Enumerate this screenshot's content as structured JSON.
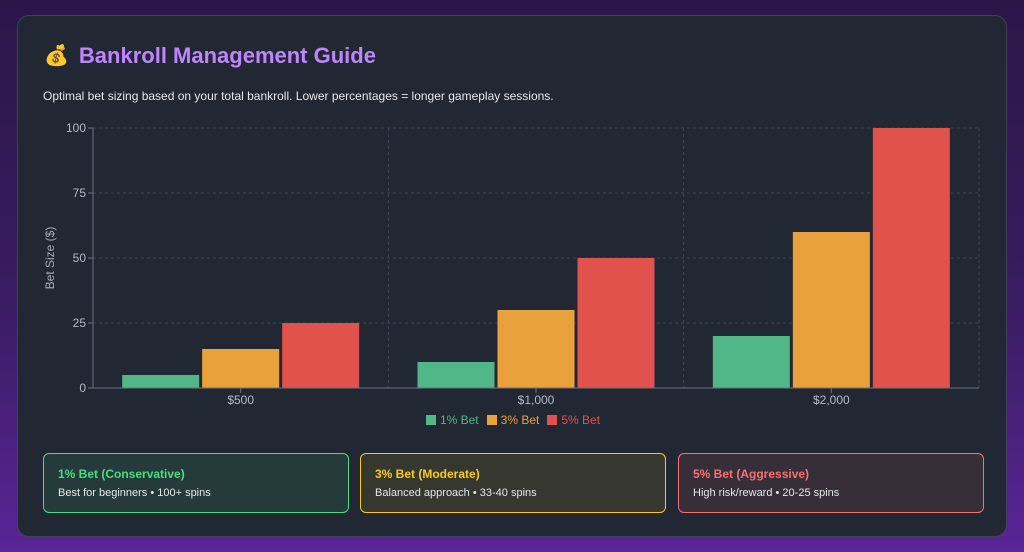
{
  "header": {
    "icon": "money-bag-icon",
    "icon_glyph": "💰",
    "title": "Bankroll Management Guide",
    "description": "Optimal bet sizing based on your total bankroll. Lower percentages = longer gameplay sessions."
  },
  "chart_data": {
    "type": "bar",
    "categories": [
      "$500",
      "$1,000",
      "$2,000"
    ],
    "series": [
      {
        "name": "1% Bet",
        "color": "#52b788",
        "values": [
          5,
          10,
          20
        ]
      },
      {
        "name": "3% Bet",
        "color": "#e9a23b",
        "values": [
          15,
          30,
          60
        ]
      },
      {
        "name": "5% Bet",
        "color": "#e0524b",
        "values": [
          25,
          50,
          100
        ]
      }
    ],
    "xlabel": "",
    "ylabel": "Bet Size ($)",
    "ylim": [
      0,
      100
    ],
    "yticks": [
      0,
      25,
      50,
      75,
      100
    ],
    "grid": true,
    "legend_position": "bottom"
  },
  "cards": [
    {
      "title": "1% Bet (Conservative)",
      "text": "Best for beginners • 100+ spins",
      "color": "#4ade80"
    },
    {
      "title": "3% Bet (Moderate)",
      "text": "Balanced approach • 33-40 spins",
      "color": "#facc15"
    },
    {
      "title": "5% Bet (Aggressive)",
      "text": "High risk/reward • 20-25 spins",
      "color": "#f87171"
    }
  ]
}
